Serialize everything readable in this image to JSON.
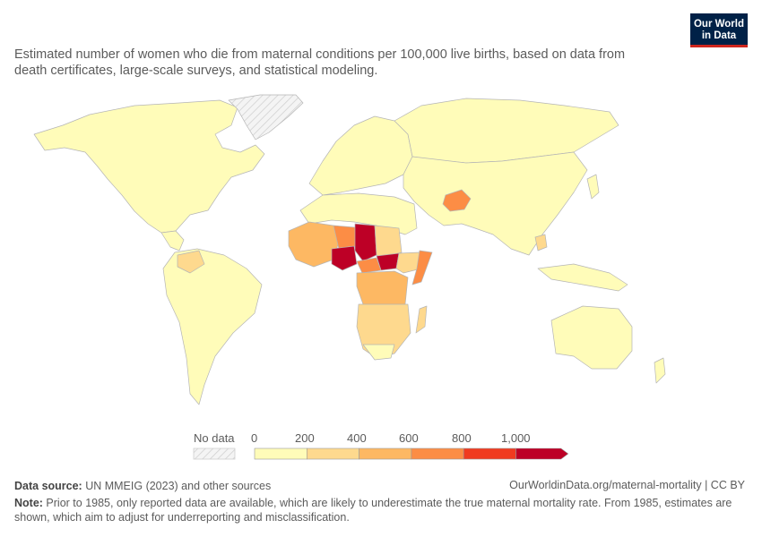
{
  "subtitle": "Estimated number of women who die from maternal conditions per 100,000 live births, based on data from death certificates, large-scale surveys, and statistical modeling.",
  "logo": {
    "line1": "Our World",
    "line2": "in Data"
  },
  "legend": {
    "no_data_label": "No data",
    "ticks": [
      "0",
      "200",
      "400",
      "600",
      "800",
      "1,000"
    ],
    "bins": [
      {
        "from": 0,
        "to": 200,
        "color": "#fffcb9"
      },
      {
        "from": 200,
        "to": 400,
        "color": "#fed98e"
      },
      {
        "from": 400,
        "to": 600,
        "color": "#fdb863"
      },
      {
        "from": 600,
        "to": 800,
        "color": "#fc8d45"
      },
      {
        "from": 800,
        "to": 1000,
        "color": "#f03b20"
      },
      {
        "from": 1000,
        "to": null,
        "color": "#bd0026"
      }
    ]
  },
  "footer": {
    "source_label": "Data source:",
    "source_text": " UN MMEIG (2023) and other sources",
    "credit": "OurWorldinData.org/maternal-mortality | CC BY",
    "note_label": "Note:",
    "note_text": " Prior to 1985, only reported data are available, which are likely to underestimate the true maternal mortality rate. From 1985, estimates are shown, which aim to adjust for underreporting and misclassification."
  }
}
